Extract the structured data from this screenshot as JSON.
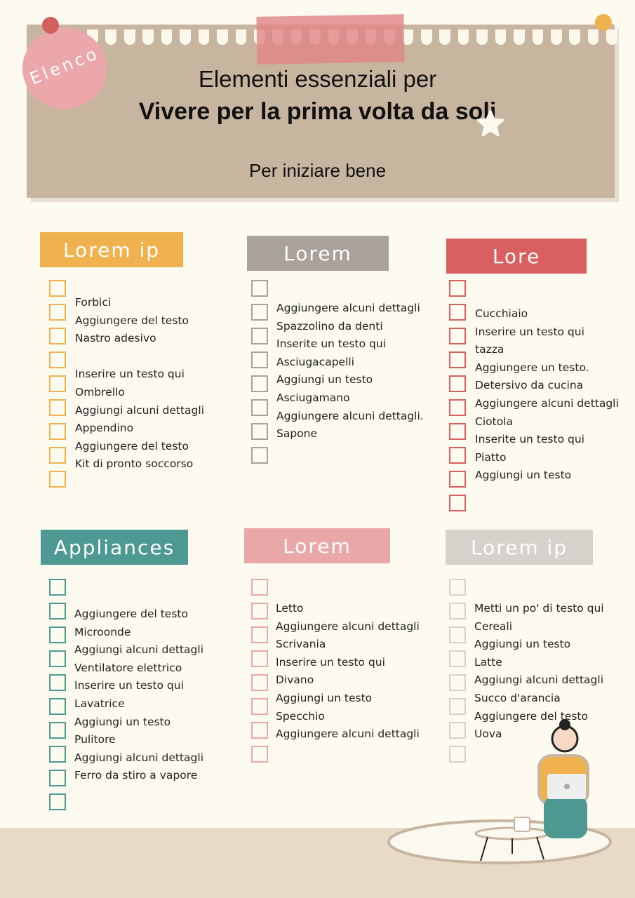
{
  "header": {
    "badge": "Elenco",
    "line1": "Elementi essenziali per",
    "line2": "Vivere per la prima volta da soli",
    "subtitle": "Per iniziare bene"
  },
  "colors": {
    "background": "#fdfbf0",
    "panel": "#c8b59f",
    "orange": "#f0b24e",
    "grey": "#a8a29a",
    "red": "#d9605f",
    "teal": "#4e9a93",
    "pink": "#eaa7a8",
    "light_grey": "#d6d2cb"
  },
  "sections": [
    {
      "label": "Lorem ip",
      "color": "#f0b24e",
      "boxes": 9,
      "items": [
        "Forbici",
        "Aggiungere del testo",
        "Nastro adesivo",
        "",
        "Inserire un testo qui",
        "Ombrello",
        "Aggiungi alcuni dettagli",
        "Appendino",
        "Aggiungere del testo",
        "Kit di pronto soccorso"
      ]
    },
    {
      "label": "Lorem",
      "color": "#a8a29a",
      "boxes": 8,
      "items": [
        "Aggiungere alcuni dettagli",
        "Spazzolino da denti",
        "Inserite un testo qui",
        "Asciugacapelli",
        "Aggiungi un testo",
        "Asciugamano",
        "Aggiungere alcuni dettagli.",
        "Sapone"
      ]
    },
    {
      "label": "Lore",
      "color": "#d9605f",
      "boxes": 10,
      "items": [
        "Cucchiaio",
        "Inserire un testo qui",
        "tazza",
        "Aggiungere un testo.",
        "Detersivo da cucina",
        "Aggiungere alcuni dettagli",
        "Ciotola",
        "Inserite un testo qui",
        "Piatto",
        "Aggiungi un testo"
      ]
    },
    {
      "label": "Appliances",
      "color": "#4e9a93",
      "boxes": 10,
      "items": [
        "Aggiungere del testo",
        "Microonde",
        "Aggiungi alcuni dettagli",
        "Ventilatore elettrico",
        "Inserire un testo qui",
        "Lavatrice",
        "Aggiungi un testo",
        "Pulitore",
        "Aggiungi alcuni dettagli",
        "Ferro da stiro a vapore"
      ]
    },
    {
      "label": "Lorem",
      "color": "#eaa7a8",
      "boxes": 8,
      "items": [
        "Letto",
        "Aggiungere alcuni dettagli",
        "Scrivania",
        "Inserire un testo qui",
        "Divano",
        "Aggiungi un testo",
        "Specchio",
        "Aggiungere alcuni dettagli"
      ]
    },
    {
      "label": "Lorem ip",
      "color": "#d6d2cb",
      "boxes": 8,
      "items": [
        "Metti un po' di testo qui",
        "Cereali",
        "Aggiungi un testo",
        "Latte",
        "Aggiungi alcuni dettagli",
        "Succo d'arancia",
        "Aggiungere del testo",
        "Uova"
      ]
    }
  ]
}
